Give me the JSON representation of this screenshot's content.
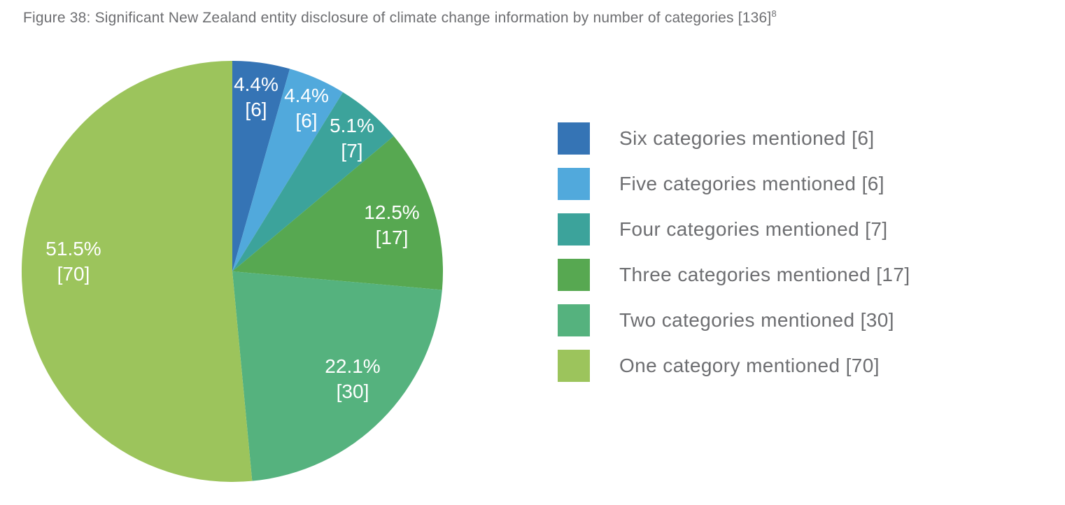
{
  "figure": {
    "title": "Figure 38: Significant New Zealand entity disclosure of climate change information by number of categories [136]",
    "title_superscript": "8"
  },
  "chart_data": {
    "type": "pie",
    "title": "Significant New Zealand entity disclosure of climate change information by number of categories",
    "total": 136,
    "total_label": "[136]",
    "start_angle_deg": 0,
    "direction": "clockwise",
    "legend_position": "right",
    "slices": [
      {
        "id": "six-categories",
        "label": "Six categories mentioned [6]",
        "category": "Six categories mentioned",
        "count": 6,
        "percent": 4.4,
        "percent_label": "4.4%",
        "count_label": "[6]",
        "color": "#3574B5"
      },
      {
        "id": "five-categories",
        "label": "Five categories mentioned [6]",
        "category": "Five categories mentioned",
        "count": 6,
        "percent": 4.4,
        "percent_label": "4.4%",
        "count_label": "[6]",
        "color": "#51A9DC"
      },
      {
        "id": "four-categories",
        "label": "Four categories mentioned [7]",
        "category": "Four categories mentioned",
        "count": 7,
        "percent": 5.1,
        "percent_label": "5.1%",
        "count_label": "[7]",
        "color": "#3CA39B"
      },
      {
        "id": "three-categories",
        "label": "Three categories mentioned [17]",
        "category": "Three categories mentioned",
        "count": 17,
        "percent": 12.5,
        "percent_label": "12.5%",
        "count_label": "[17]",
        "color": "#57A851"
      },
      {
        "id": "two-categories",
        "label": "Two categories mentioned [30]",
        "category": "Two categories mentioned",
        "count": 30,
        "percent": 22.1,
        "percent_label": "22.1%",
        "count_label": "[30]",
        "color": "#55B27E"
      },
      {
        "id": "one-category",
        "label": "One category mentioned [70]",
        "category": "One category mentioned",
        "count": 70,
        "percent": 51.5,
        "percent_label": "51.5%",
        "count_label": "[70]",
        "color": "#9CC45C"
      }
    ]
  }
}
